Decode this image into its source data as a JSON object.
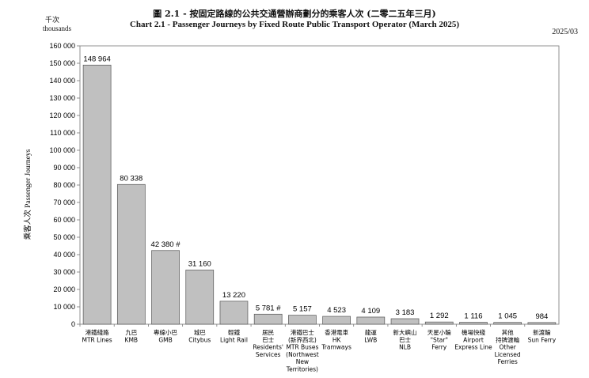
{
  "title_zh": "圖 2.1 - 按固定路線的公共交通營辦商劃分的乘客人次 (二零二五年三月)",
  "title_en": "Chart 2.1 - Passenger Journeys by Fixed Route Public Transport Operator (March 2025)",
  "date": "2025/03",
  "unit_zh": "千次",
  "unit_en": "thousands",
  "chart_data": {
    "type": "bar",
    "ylabel": "乘客人次 Passenger Journeys",
    "ylim": [
      0,
      160000
    ],
    "yticks": [
      0,
      10000,
      20000,
      30000,
      40000,
      50000,
      60000,
      70000,
      80000,
      90000,
      100000,
      110000,
      120000,
      130000,
      140000,
      150000,
      160000
    ],
    "ytick_labels": [
      "0",
      "10 000",
      "20 000",
      "30 000",
      "40 000",
      "50 000",
      "60 000",
      "70 000",
      "80 000",
      "90 000",
      "100 000",
      "110 000",
      "120 000",
      "130 000",
      "140 000",
      "150 000",
      "160 000"
    ],
    "grid": false,
    "bar_color": "#c0c0c0",
    "categories": [
      [
        "港鐵綫路",
        "MTR Lines"
      ],
      [
        "九巴",
        "KMB"
      ],
      [
        "專線小巴",
        "GMB"
      ],
      [
        "城巴",
        "Citybus"
      ],
      [
        "輕鐵",
        "Light Rail"
      ],
      [
        "居民",
        "巴士",
        "Residents'",
        "Services"
      ],
      [
        "港鐵巴士",
        "(新界西北)",
        "MTR Buses",
        "(Northwest",
        "New",
        "Territories)"
      ],
      [
        "香港電車",
        "HK",
        "Tramways"
      ],
      [
        "龍運",
        "LWB"
      ],
      [
        "新大嶼山",
        "巴士",
        "NLB"
      ],
      [
        "天星小輪",
        "\"Star\"",
        "Ferry"
      ],
      [
        "機場快綫",
        "Airport",
        "Express Line"
      ],
      [
        "其他",
        "持牌渡輪",
        "Other",
        "Licensed",
        "Ferries"
      ],
      [
        "新渡輪",
        "Sun Ferry"
      ]
    ],
    "values": [
      148964,
      80338,
      42380,
      31160,
      13220,
      5781,
      5157,
      4523,
      4109,
      3183,
      1292,
      1116,
      1045,
      984
    ],
    "value_labels": [
      "148 964",
      "80 338",
      "42 380 #",
      "31 160",
      "13 220",
      "5 781 #",
      "5 157",
      "4 523",
      "4 109",
      "3 183",
      "1 292",
      "1 116",
      "1 045",
      "984"
    ]
  }
}
